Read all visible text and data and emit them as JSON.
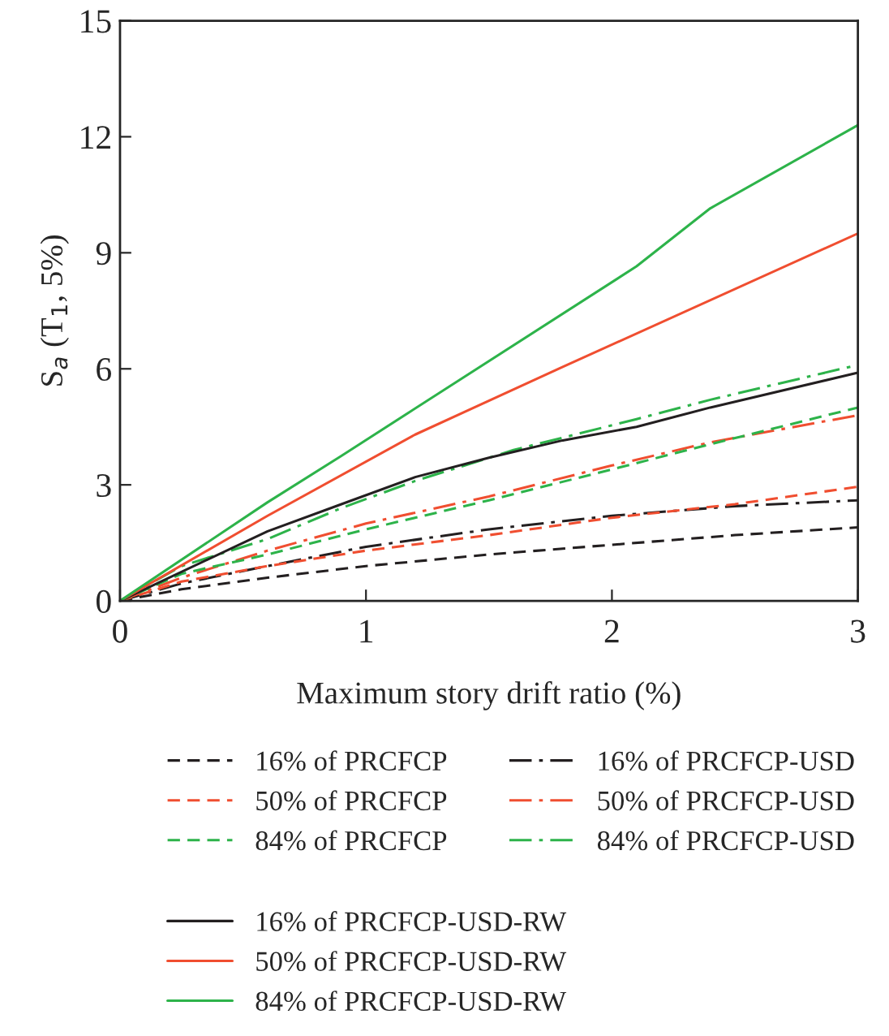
{
  "chart_data": {
    "type": "line",
    "xlabel": "Maximum story drift ratio (%)",
    "ylabel": "S$_{a}$ (T$_{1}$, 5%)",
    "xlim": [
      0,
      3
    ],
    "xticks": [
      0,
      1,
      2,
      3
    ],
    "ylim": [
      0,
      15
    ],
    "yticks": [
      0,
      3,
      6,
      9,
      12,
      15
    ],
    "grid": false,
    "legend": "bottom",
    "marker": "none",
    "series": [
      {
        "name": "16% of PRCFCP",
        "color": "#231f20",
        "line_style": "dashed",
        "x": [
          0,
          0.25,
          0.6,
          1.0,
          1.5,
          2.0,
          2.5,
          3
        ],
        "values": [
          0,
          0.3,
          0.6,
          0.9,
          1.2,
          1.45,
          1.7,
          1.9
        ]
      },
      {
        "name": "16% of PRCFCP-USD",
        "color": "#231f20",
        "line_style": "dashdot",
        "x": [
          0,
          0.25,
          0.6,
          1.0,
          1.5,
          2.0,
          2.5,
          3
        ],
        "values": [
          0,
          0.45,
          0.9,
          1.4,
          1.85,
          2.2,
          2.45,
          2.6
        ]
      },
      {
        "name": "50% of PRCFCP",
        "color": "#f04e30",
        "line_style": "dashed",
        "x": [
          0,
          0.25,
          0.6,
          1.0,
          1.5,
          2.0,
          2.5,
          3
        ],
        "values": [
          0,
          0.5,
          0.9,
          1.3,
          1.7,
          2.15,
          2.5,
          2.95
        ]
      },
      {
        "name": "50% of PRCFCP-USD",
        "color": "#f04e30",
        "line_style": "dashdot",
        "x": [
          0,
          0.25,
          0.6,
          1.0,
          1.5,
          2.0,
          2.4,
          3
        ],
        "values": [
          0,
          0.6,
          1.3,
          2.0,
          2.7,
          3.5,
          4.1,
          4.8
        ]
      },
      {
        "name": "84% of PRCFCP",
        "color": "#2db34a",
        "line_style": "dashed",
        "x": [
          0,
          0.25,
          0.6,
          1.0,
          1.5,
          2.0,
          2.4,
          3
        ],
        "values": [
          0,
          0.7,
          1.2,
          1.85,
          2.6,
          3.4,
          4.05,
          5.0
        ]
      },
      {
        "name": "84% of PRCFCP-USD",
        "color": "#2db34a",
        "line_style": "dashdot",
        "x": [
          0,
          0.25,
          0.6,
          0.9,
          1.2,
          1.6,
          2.1,
          2.4,
          3
        ],
        "values": [
          0,
          0.9,
          1.6,
          2.4,
          3.1,
          3.9,
          4.7,
          5.2,
          6.1
        ]
      },
      {
        "name": "16% of PRCFCP-USD-RW",
        "color": "#231f20",
        "line_style": "solid",
        "x": [
          0,
          0.6,
          0.9,
          1.2,
          1.5,
          1.8,
          2.1,
          2.4,
          3
        ],
        "values": [
          0,
          1.8,
          2.5,
          3.2,
          3.7,
          4.15,
          4.5,
          5.0,
          5.9
        ]
      },
      {
        "name": "50% of PRCFCP-USD-RW",
        "color": "#f04e30",
        "line_style": "solid",
        "x": [
          0,
          0.6,
          1.2,
          1.8,
          3
        ],
        "values": [
          0,
          2.2,
          4.3,
          6.05,
          9.5
        ]
      },
      {
        "name": "84% of PRCFCP-USD-RW",
        "color": "#2db34a",
        "line_style": "solid",
        "x": [
          0,
          0.6,
          0.9,
          2.1,
          2.4,
          3
        ],
        "values": [
          0,
          2.55,
          3.75,
          8.65,
          10.15,
          12.3
        ]
      }
    ]
  }
}
